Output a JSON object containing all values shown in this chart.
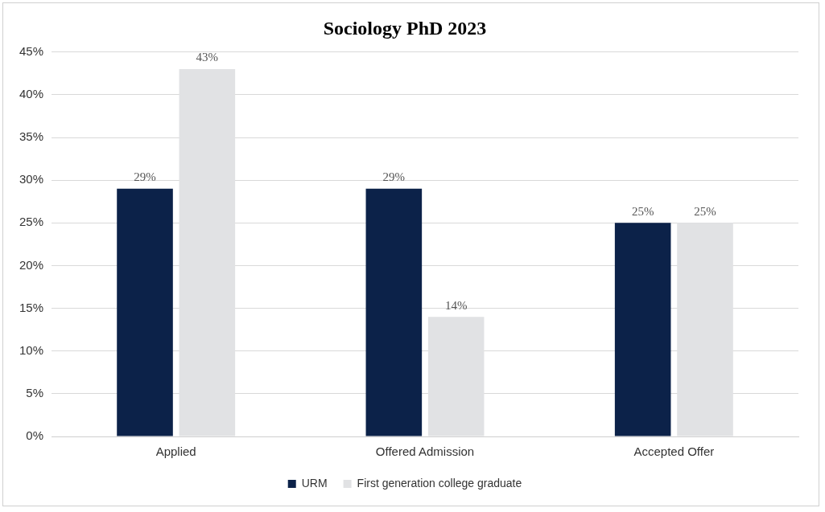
{
  "chart_data": {
    "type": "bar",
    "title": "Sociology PhD 2023",
    "categories": [
      "Applied",
      "Offered Admission",
      "Accepted Offer"
    ],
    "series": [
      {
        "name": "URM",
        "color": "#0c2249",
        "values": [
          29,
          29,
          25
        ],
        "value_labels": [
          "29%",
          "29%",
          "25%"
        ]
      },
      {
        "name": "First generation college graduate",
        "color": "#e1e2e4",
        "values": [
          43,
          14,
          25
        ],
        "value_labels": [
          "43%",
          "14%",
          "25%"
        ]
      }
    ],
    "ylim": [
      0,
      45
    ],
    "yticks": [
      {
        "value": 0,
        "label": "0%"
      },
      {
        "value": 5,
        "label": "5%"
      },
      {
        "value": 10,
        "label": "10%"
      },
      {
        "value": 15,
        "label": "15%"
      },
      {
        "value": 20,
        "label": "20%"
      },
      {
        "value": 25,
        "label": "25%"
      },
      {
        "value": 30,
        "label": "30%"
      },
      {
        "value": 35,
        "label": "35%"
      },
      {
        "value": 40,
        "label": "40%"
      },
      {
        "value": 45,
        "label": "45%"
      }
    ],
    "grid": "y",
    "legend": "bottom"
  }
}
